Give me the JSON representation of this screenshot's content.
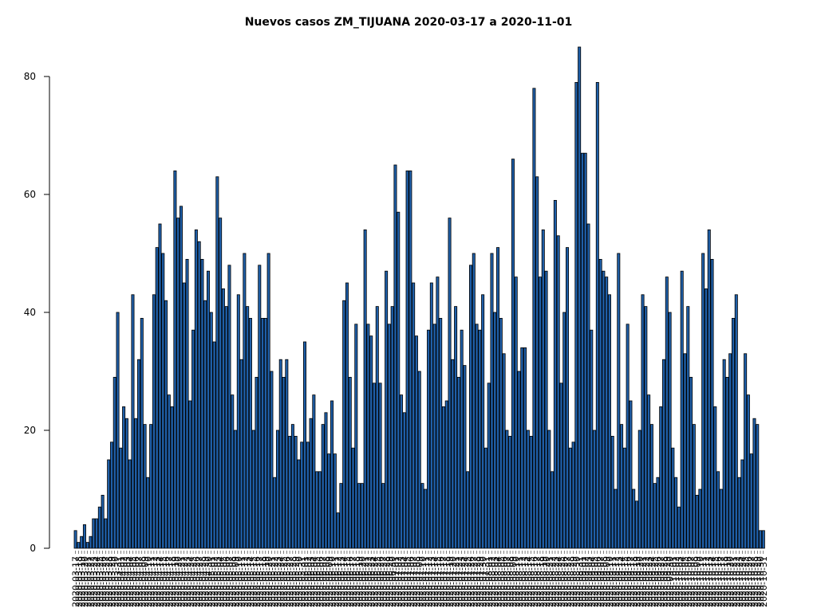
{
  "chart_data": {
    "type": "bar",
    "title": "Nuevos casos ZM_TIJUANA 2020-03-17 a 2020-11-01",
    "xlabel": "",
    "ylabel": "",
    "ylim": [
      0,
      85
    ],
    "yticks": [
      0,
      20,
      40,
      60,
      80
    ],
    "x_start": "2020-03-17",
    "x_end": "2020-11-01",
    "grid": false,
    "bar_color": "#1f5fa8",
    "bar_edge_color": "#000000",
    "values": [
      3,
      1,
      2,
      4,
      1,
      2,
      5,
      5,
      7,
      9,
      5,
      15,
      18,
      29,
      40,
      17,
      24,
      22,
      15,
      43,
      22,
      32,
      39,
      21,
      12,
      21,
      43,
      51,
      55,
      50,
      42,
      26,
      24,
      64,
      56,
      58,
      45,
      49,
      25,
      37,
      54,
      52,
      49,
      42,
      47,
      40,
      35,
      63,
      56,
      44,
      41,
      48,
      26,
      20,
      43,
      32,
      50,
      41,
      39,
      20,
      29,
      48,
      39,
      39,
      50,
      30,
      12,
      20,
      32,
      29,
      32,
      19,
      21,
      19,
      15,
      18,
      35,
      18,
      22,
      26,
      13,
      13,
      21,
      23,
      16,
      25,
      16,
      6,
      11,
      42,
      45,
      29,
      17,
      38,
      11,
      11,
      54,
      38,
      36,
      28,
      41,
      28,
      11,
      47,
      38,
      41,
      65,
      57,
      26,
      23,
      64,
      64,
      45,
      36,
      30,
      11,
      10,
      37,
      45,
      38,
      46,
      39,
      24,
      25,
      56,
      32,
      41,
      29,
      37,
      31,
      13,
      48,
      50,
      38,
      37,
      43,
      17,
      28,
      50,
      40,
      51,
      39,
      33,
      20,
      19,
      66,
      46,
      30,
      34,
      34,
      20,
      19,
      78,
      63,
      46,
      54,
      47,
      20,
      13,
      59,
      53,
      28,
      40,
      51,
      17,
      18,
      79,
      85,
      67,
      67,
      55,
      37,
      20,
      79,
      49,
      47,
      46,
      43,
      19,
      10,
      50,
      21,
      17,
      38,
      25,
      10,
      8,
      20,
      43,
      41,
      26,
      21,
      11,
      12,
      24,
      32,
      46,
      40,
      17,
      12,
      7,
      47,
      33,
      41,
      29,
      21,
      9,
      10,
      50,
      44,
      54,
      49,
      24,
      13,
      10,
      32,
      29,
      33,
      39,
      43,
      12,
      15,
      33,
      26,
      16,
      22,
      21,
      3,
      3
    ]
  }
}
